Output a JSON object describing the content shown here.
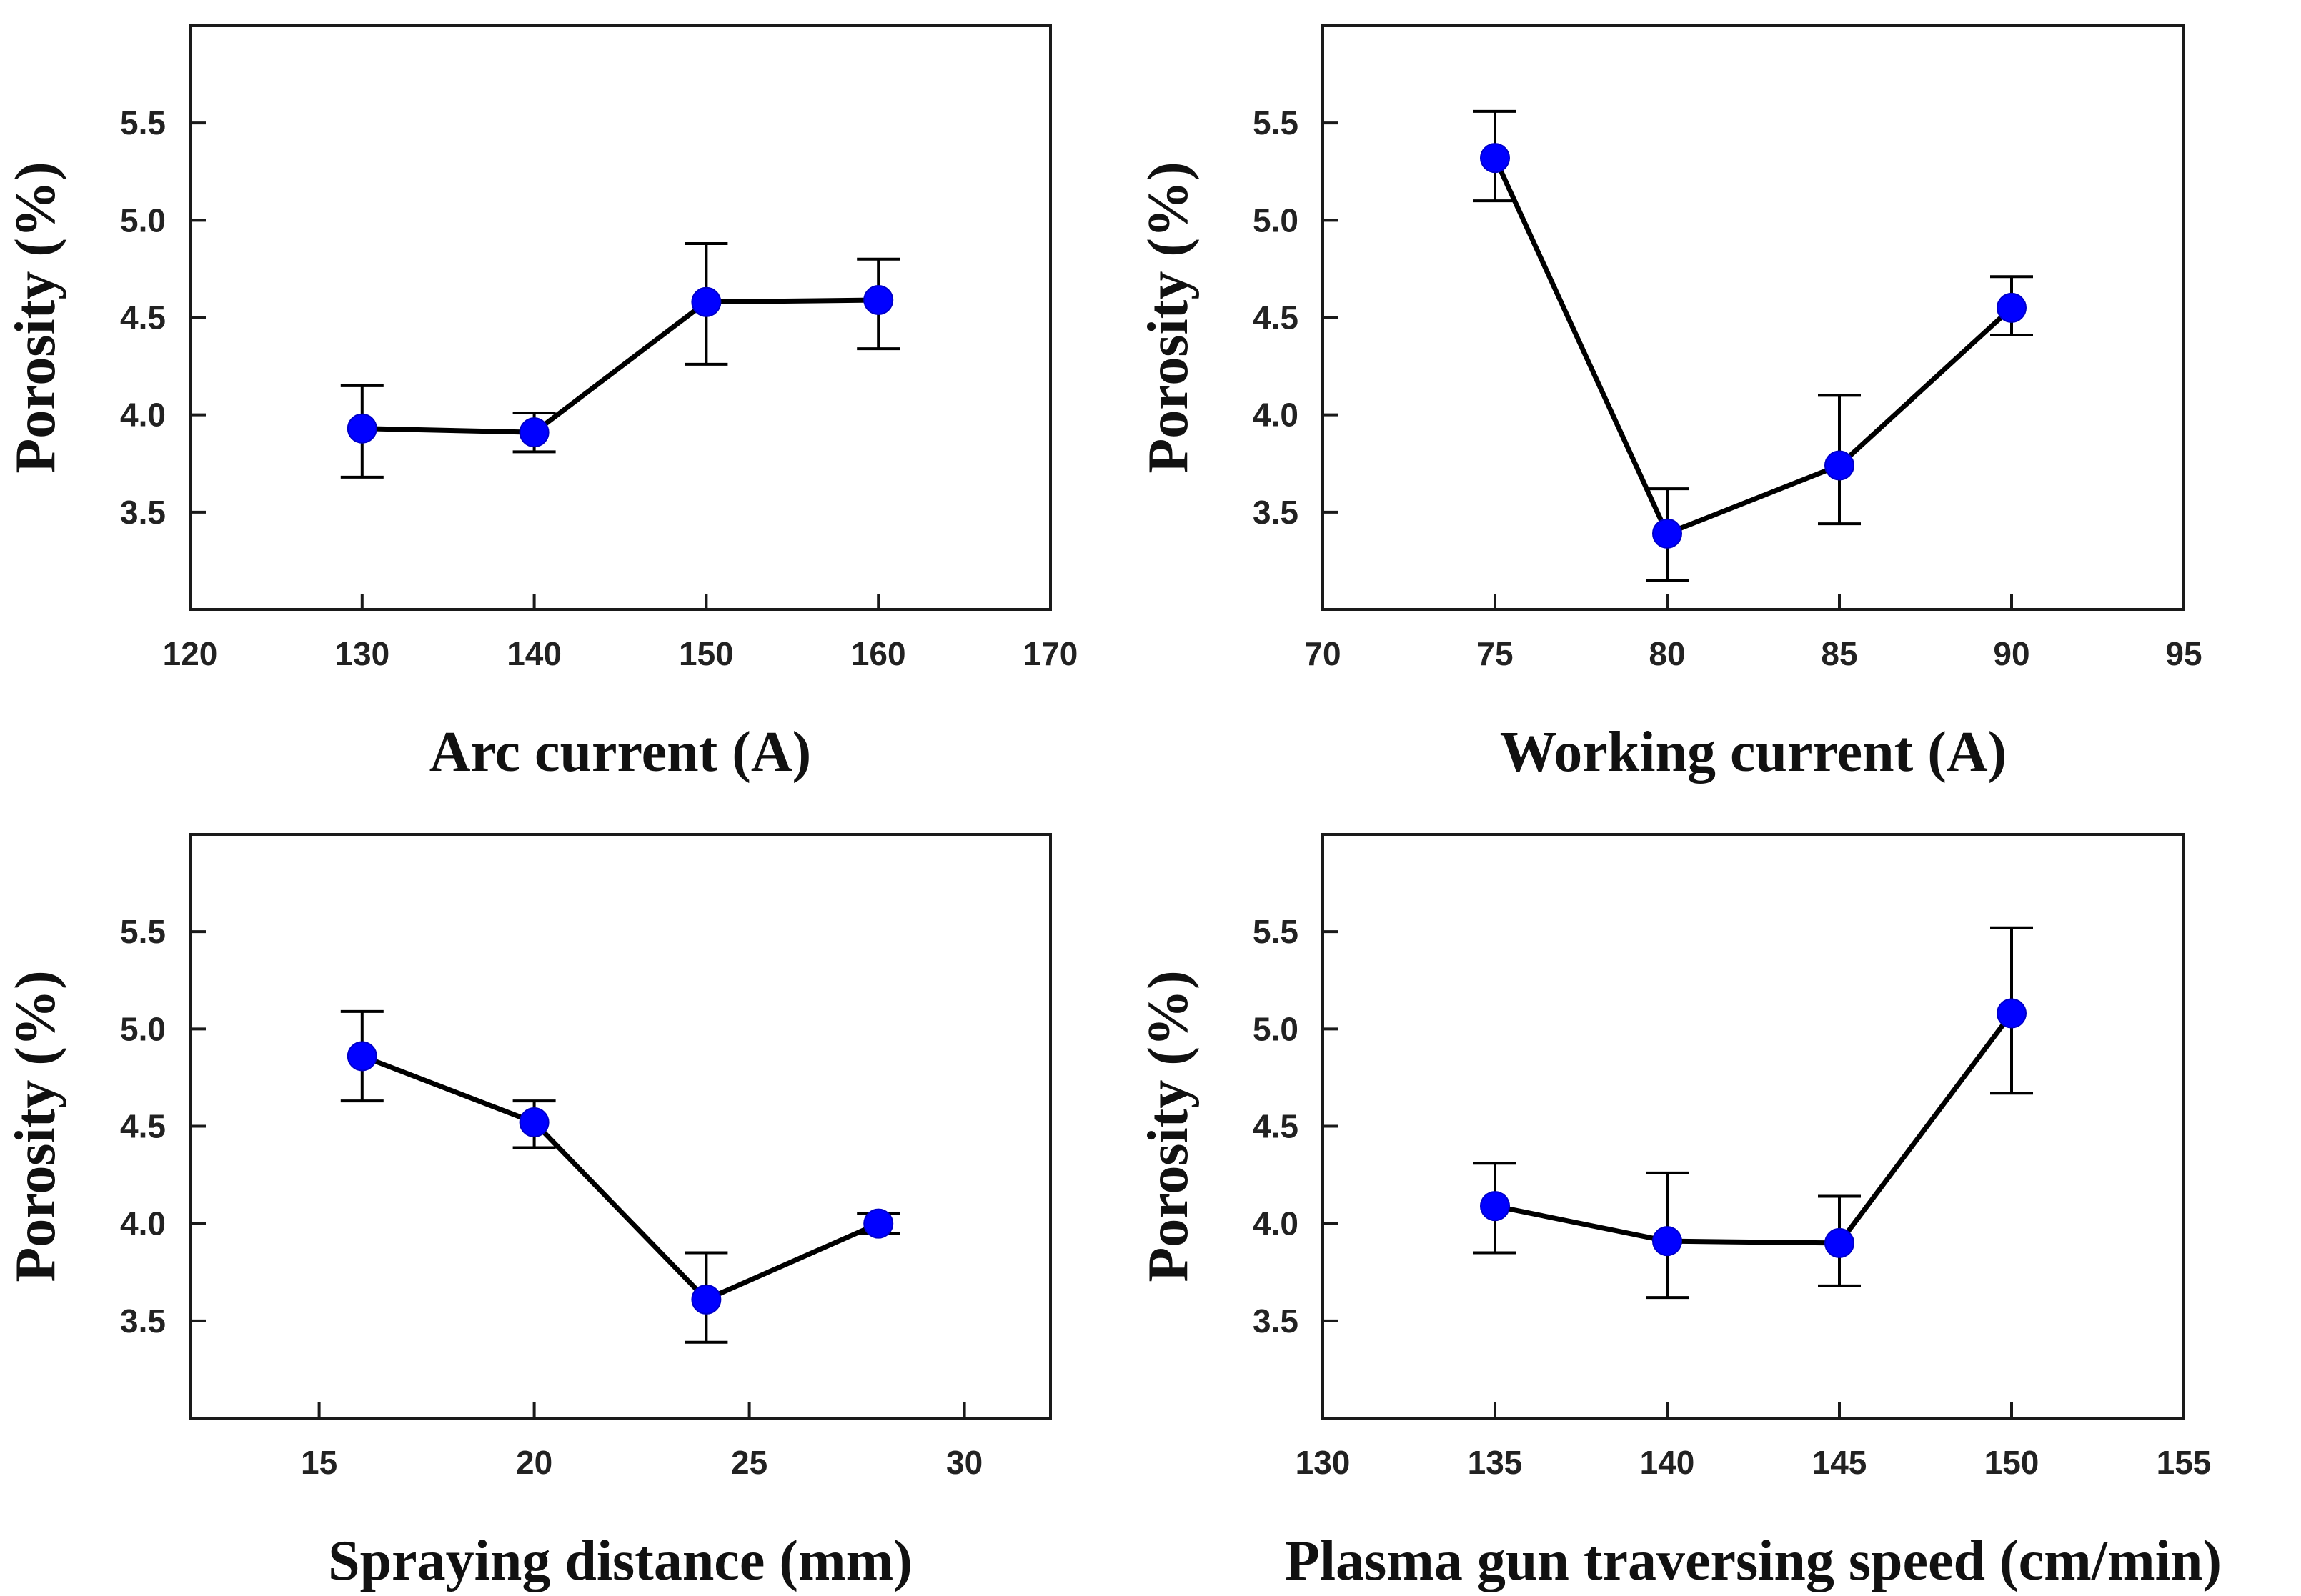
{
  "chart_data": [
    {
      "type": "line",
      "title": "",
      "xlabel": "Arc current (A)",
      "ylabel": "Porosity (%)",
      "xlim": [
        120,
        170
      ],
      "ylim": [
        3.0,
        6.0
      ],
      "xticks": [
        120,
        130,
        140,
        150,
        160,
        170
      ],
      "xtick_labels": [
        "120",
        "130",
        "140",
        "150",
        "160",
        "170"
      ],
      "yticks": [
        3.5,
        4.0,
        4.5,
        5.0,
        5.5
      ],
      "ytick_labels": [
        "3.5",
        "4.0",
        "4.5",
        "5.0",
        "5.5"
      ],
      "grid": false,
      "series": [
        {
          "name": "Porosity",
          "x": [
            130,
            140,
            150,
            160
          ],
          "y": [
            3.93,
            3.91,
            4.58,
            4.59
          ],
          "err_low": [
            3.68,
            3.81,
            4.26,
            4.34
          ],
          "err_high": [
            4.15,
            4.01,
            4.88,
            4.8
          ],
          "color": "#0000ff"
        }
      ]
    },
    {
      "type": "line",
      "title": "",
      "xlabel": "Working current (A)",
      "ylabel": "Porosity (%)",
      "xlim": [
        70,
        95
      ],
      "ylim": [
        3.0,
        6.0
      ],
      "xticks": [
        70,
        75,
        80,
        85,
        90,
        95
      ],
      "xtick_labels": [
        "70",
        "75",
        "80",
        "85",
        "90",
        "95"
      ],
      "yticks": [
        3.5,
        4.0,
        4.5,
        5.0,
        5.5
      ],
      "ytick_labels": [
        "3.5",
        "4.0",
        "4.5",
        "5.0",
        "5.5"
      ],
      "grid": false,
      "series": [
        {
          "name": "Porosity",
          "x": [
            75,
            80,
            85,
            90
          ],
          "y": [
            5.32,
            3.39,
            3.74,
            4.55
          ],
          "err_low": [
            5.1,
            3.15,
            3.44,
            4.41
          ],
          "err_high": [
            5.56,
            3.62,
            4.1,
            4.71
          ],
          "color": "#0000ff"
        }
      ]
    },
    {
      "type": "line",
      "title": "",
      "xlabel": "Spraying distance (mm)",
      "ylabel": "Porosity (%)",
      "xlim": [
        12,
        32
      ],
      "ylim": [
        3.0,
        6.0
      ],
      "xticks": [
        15,
        20,
        25,
        30
      ],
      "xtick_labels": [
        "15",
        "20",
        "25",
        "30"
      ],
      "yticks": [
        3.5,
        4.0,
        4.5,
        5.0,
        5.5
      ],
      "ytick_labels": [
        "3.5",
        "4.0",
        "4.5",
        "5.0",
        "5.5"
      ],
      "grid": false,
      "series": [
        {
          "name": "Porosity",
          "x": [
            16,
            20,
            24,
            28
          ],
          "y": [
            4.86,
            4.52,
            3.61,
            4.0
          ],
          "err_low": [
            4.63,
            4.39,
            3.39,
            3.95
          ],
          "err_high": [
            5.09,
            4.63,
            3.85,
            4.05
          ],
          "color": "#0000ff"
        }
      ]
    },
    {
      "type": "line",
      "title": "",
      "xlabel": "Plasma gun traversing speed (cm/min)",
      "ylabel": "Porosity (%)",
      "xlim": [
        130,
        155
      ],
      "ylim": [
        3.0,
        6.0
      ],
      "xticks": [
        130,
        135,
        140,
        145,
        150,
        155
      ],
      "xtick_labels": [
        "130",
        "135",
        "140",
        "145",
        "150",
        "155"
      ],
      "yticks": [
        3.5,
        4.0,
        4.5,
        5.0,
        5.5
      ],
      "ytick_labels": [
        "3.5",
        "4.0",
        "4.5",
        "5.0",
        "5.5"
      ],
      "grid": false,
      "series": [
        {
          "name": "Porosity",
          "x": [
            135,
            140,
            145,
            150
          ],
          "y": [
            4.09,
            3.91,
            3.9,
            5.08
          ],
          "err_low": [
            3.85,
            3.62,
            3.68,
            4.67
          ],
          "err_high": [
            4.31,
            4.26,
            4.14,
            5.52
          ],
          "color": "#0000ff"
        }
      ]
    }
  ]
}
